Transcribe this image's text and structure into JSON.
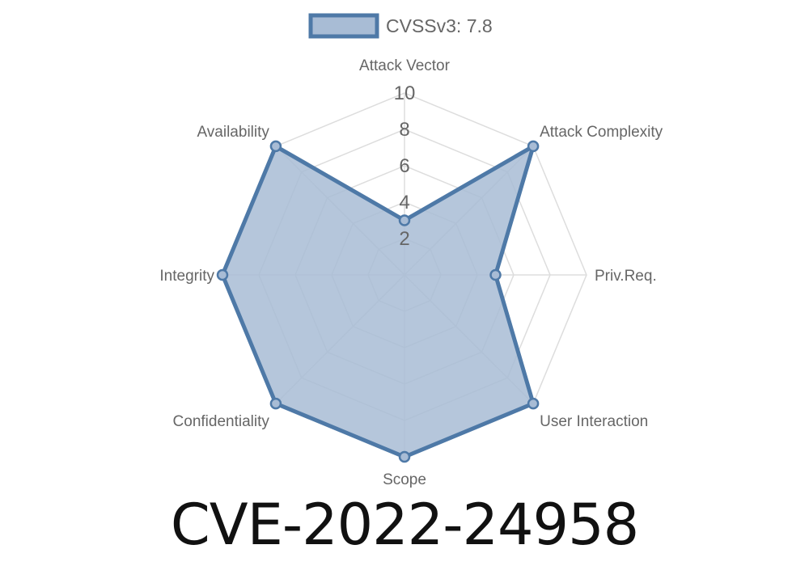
{
  "chart_data": {
    "type": "radar",
    "title": "CVE-2022-24958",
    "categories": [
      "Attack Vector",
      "Attack Complexity",
      "Priv.Req.",
      "User Interaction",
      "Scope",
      "Confidentiality",
      "Integrity",
      "Availability"
    ],
    "series": [
      {
        "name": "CVSSv3: 7.8",
        "values": [
          3,
          10,
          5,
          10,
          10,
          10,
          10,
          10
        ]
      }
    ],
    "rlim": [
      0,
      10
    ],
    "ticks": [
      "2",
      "4",
      "6",
      "8",
      "10"
    ],
    "grid": true,
    "legend": "top",
    "colors": {
      "line": "#4e79a7",
      "fill": "#a8bcd5",
      "grid": "#dddddd",
      "label": "#666666"
    }
  }
}
